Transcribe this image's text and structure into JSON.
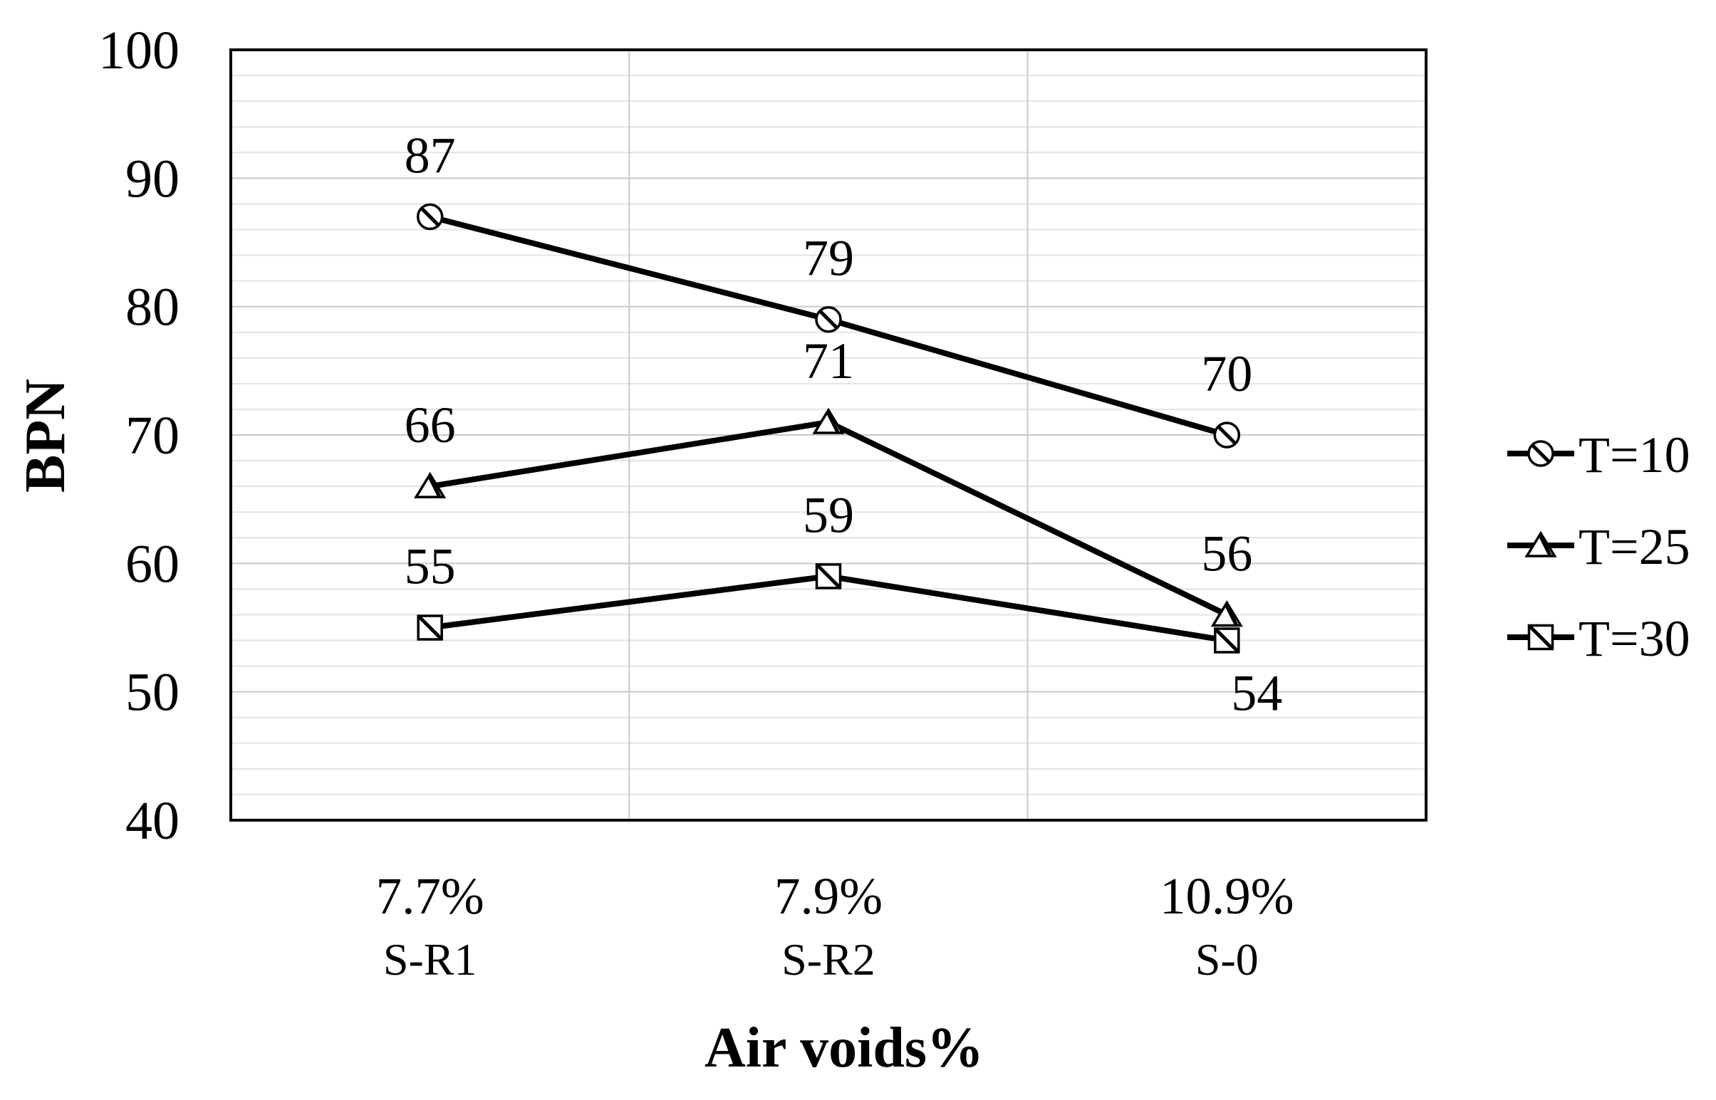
{
  "chart_data": {
    "type": "line",
    "title": "",
    "xlabel": "Air voids%",
    "ylabel": "BPN",
    "ylim": [
      40,
      100
    ],
    "ytick_step": 10,
    "yticks": [
      40,
      50,
      60,
      70,
      80,
      90,
      100
    ],
    "minor_grid_step": 2,
    "grid": true,
    "legend_position": "right",
    "categories": [
      {
        "air_voids": "7.7%",
        "mix": "S-R1"
      },
      {
        "air_voids": "7.9%",
        "mix": "S-R2"
      },
      {
        "air_voids": "10.9%",
        "mix": "S-0"
      }
    ],
    "series": [
      {
        "name": "T=10",
        "marker": "circle",
        "values": [
          87,
          79,
          70
        ],
        "label_pos": [
          "above",
          "above",
          "above"
        ]
      },
      {
        "name": "T=25",
        "marker": "triangle",
        "values": [
          66,
          71,
          56
        ],
        "label_pos": [
          "above",
          "above",
          "above"
        ]
      },
      {
        "name": "T=30",
        "marker": "square",
        "values": [
          55,
          59,
          54
        ],
        "label_pos": [
          "above",
          "above",
          "below-right"
        ]
      }
    ],
    "colors": {
      "line": "#000000",
      "marker_fill": "#ffffff",
      "plot_border": "#000000",
      "grid_minor": "#e3e3e3",
      "grid_major": "#c9c9c9",
      "background": "#ffffff"
    }
  }
}
